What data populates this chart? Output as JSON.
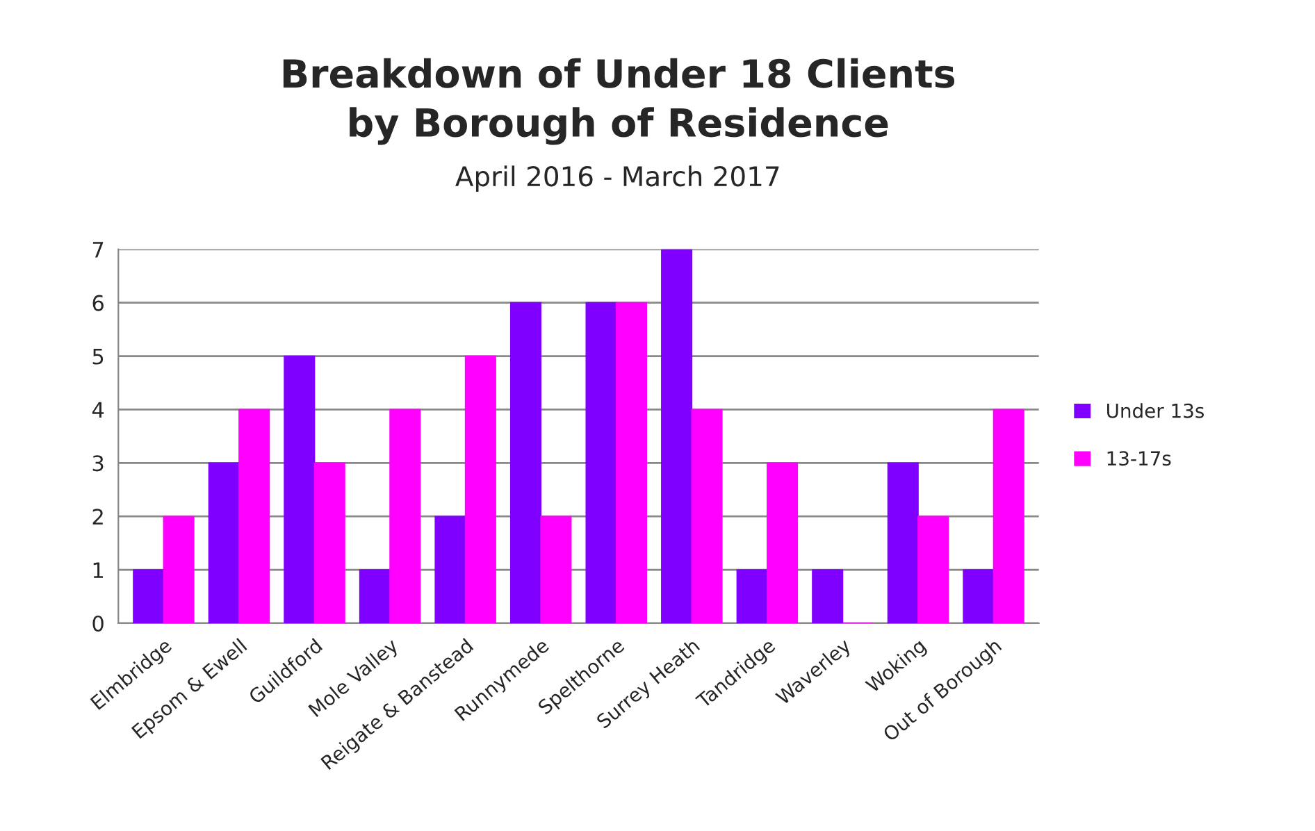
{
  "chart_data": {
    "type": "bar",
    "title": "Breakdown of Under 18 Clients\nby Borough of Residence",
    "subtitle": "April 2016 - March 2017",
    "categories": [
      "Elmbridge",
      "Epsom & Ewell",
      "Guildford",
      "Mole Valley",
      "Reigate & Banstead",
      "Runnymede",
      "Spelthorne",
      "Surrey Heath",
      "Tandridge",
      "Waverley",
      "Woking",
      "Out of Borough"
    ],
    "series": [
      {
        "name": "Under 13s",
        "color": "#8000ff",
        "values": [
          1,
          3,
          5,
          1,
          2,
          6,
          6,
          7,
          1,
          1,
          3,
          1
        ]
      },
      {
        "name": "13-17s",
        "color": "#ff00ff",
        "values": [
          2,
          4,
          3,
          4,
          5,
          2,
          6,
          4,
          3,
          0,
          2,
          4
        ]
      }
    ],
    "ylim": [
      0,
      7
    ],
    "yticks": [
      0,
      1,
      2,
      3,
      4,
      5,
      6,
      7
    ],
    "grid": "y",
    "legend": "right"
  }
}
